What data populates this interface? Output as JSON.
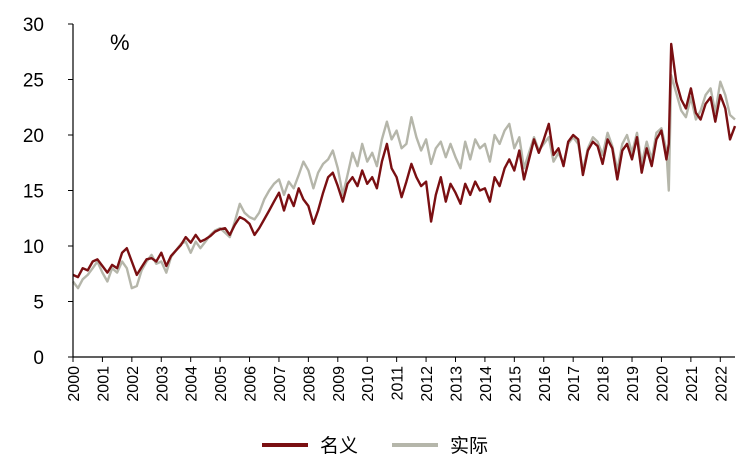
{
  "chart_data": {
    "type": "line",
    "unit_label": "%",
    "ylim": [
      0,
      30
    ],
    "y_ticks": [
      "0",
      "5",
      "10",
      "15",
      "20",
      "25",
      "30"
    ],
    "x_ticks": [
      "2000",
      "2001",
      "2002",
      "2003",
      "2004",
      "2005",
      "2006",
      "2007",
      "2008",
      "2009",
      "2010",
      "2011",
      "2012",
      "2013",
      "2014",
      "2015",
      "2016",
      "2017",
      "2018",
      "2019",
      "2020",
      "2021",
      "2022"
    ],
    "xlim": [
      2000.0,
      2022.5
    ],
    "grid": false,
    "legend_position": "bottom",
    "series": [
      {
        "name": "名义",
        "color": "#7a0f12",
        "points": [
          [
            2000.0,
            7.4
          ],
          [
            2000.17,
            7.2
          ],
          [
            2000.33,
            8.0
          ],
          [
            2000.5,
            7.8
          ],
          [
            2000.67,
            8.6
          ],
          [
            2000.83,
            8.8
          ],
          [
            2001.0,
            8.2
          ],
          [
            2001.17,
            7.6
          ],
          [
            2001.33,
            8.3
          ],
          [
            2001.5,
            8.0
          ],
          [
            2001.67,
            9.4
          ],
          [
            2001.83,
            9.8
          ],
          [
            2002.0,
            8.6
          ],
          [
            2002.17,
            7.4
          ],
          [
            2002.33,
            8.1
          ],
          [
            2002.5,
            8.8
          ],
          [
            2002.67,
            8.9
          ],
          [
            2002.83,
            8.6
          ],
          [
            2003.0,
            9.4
          ],
          [
            2003.17,
            8.2
          ],
          [
            2003.33,
            9.1
          ],
          [
            2003.5,
            9.6
          ],
          [
            2003.67,
            10.1
          ],
          [
            2003.83,
            10.8
          ],
          [
            2004.0,
            10.3
          ],
          [
            2004.17,
            11.0
          ],
          [
            2004.33,
            10.4
          ],
          [
            2004.5,
            10.6
          ],
          [
            2004.67,
            10.9
          ],
          [
            2004.83,
            11.3
          ],
          [
            2005.0,
            11.5
          ],
          [
            2005.17,
            11.6
          ],
          [
            2005.33,
            11.0
          ],
          [
            2005.5,
            11.9
          ],
          [
            2005.67,
            12.6
          ],
          [
            2005.83,
            12.4
          ],
          [
            2006.0,
            12.0
          ],
          [
            2006.17,
            11.0
          ],
          [
            2006.33,
            11.6
          ],
          [
            2006.5,
            12.4
          ],
          [
            2006.67,
            13.2
          ],
          [
            2006.83,
            14.0
          ],
          [
            2007.0,
            14.8
          ],
          [
            2007.17,
            13.2
          ],
          [
            2007.33,
            14.6
          ],
          [
            2007.5,
            13.6
          ],
          [
            2007.67,
            15.2
          ],
          [
            2007.83,
            14.2
          ],
          [
            2008.0,
            13.6
          ],
          [
            2008.17,
            12.0
          ],
          [
            2008.33,
            13.2
          ],
          [
            2008.5,
            14.8
          ],
          [
            2008.67,
            16.2
          ],
          [
            2008.83,
            16.6
          ],
          [
            2009.0,
            15.4
          ],
          [
            2009.17,
            14.0
          ],
          [
            2009.33,
            15.6
          ],
          [
            2009.5,
            16.2
          ],
          [
            2009.67,
            15.4
          ],
          [
            2009.83,
            16.8
          ],
          [
            2010.0,
            15.6
          ],
          [
            2010.17,
            16.2
          ],
          [
            2010.33,
            15.2
          ],
          [
            2010.5,
            17.6
          ],
          [
            2010.67,
            19.2
          ],
          [
            2010.83,
            17.0
          ],
          [
            2011.0,
            16.2
          ],
          [
            2011.17,
            14.4
          ],
          [
            2011.33,
            15.8
          ],
          [
            2011.5,
            17.4
          ],
          [
            2011.67,
            16.2
          ],
          [
            2011.83,
            15.4
          ],
          [
            2012.0,
            15.8
          ],
          [
            2012.17,
            12.2
          ],
          [
            2012.33,
            14.6
          ],
          [
            2012.5,
            16.2
          ],
          [
            2012.67,
            14.0
          ],
          [
            2012.83,
            15.6
          ],
          [
            2013.0,
            14.8
          ],
          [
            2013.17,
            13.8
          ],
          [
            2013.33,
            15.6
          ],
          [
            2013.5,
            14.6
          ],
          [
            2013.67,
            15.8
          ],
          [
            2013.83,
            15.0
          ],
          [
            2014.0,
            15.2
          ],
          [
            2014.17,
            14.0
          ],
          [
            2014.33,
            16.2
          ],
          [
            2014.5,
            15.4
          ],
          [
            2014.67,
            17.0
          ],
          [
            2014.83,
            17.8
          ],
          [
            2015.0,
            16.8
          ],
          [
            2015.17,
            18.6
          ],
          [
            2015.33,
            16.0
          ],
          [
            2015.5,
            17.8
          ],
          [
            2015.67,
            19.6
          ],
          [
            2015.83,
            18.4
          ],
          [
            2016.0,
            19.6
          ],
          [
            2016.17,
            21.0
          ],
          [
            2016.33,
            18.2
          ],
          [
            2016.5,
            18.8
          ],
          [
            2016.67,
            17.2
          ],
          [
            2016.83,
            19.4
          ],
          [
            2017.0,
            20.0
          ],
          [
            2017.17,
            19.6
          ],
          [
            2017.33,
            16.4
          ],
          [
            2017.5,
            18.6
          ],
          [
            2017.67,
            19.4
          ],
          [
            2017.83,
            19.0
          ],
          [
            2018.0,
            17.4
          ],
          [
            2018.17,
            19.6
          ],
          [
            2018.33,
            18.8
          ],
          [
            2018.5,
            16.0
          ],
          [
            2018.67,
            18.6
          ],
          [
            2018.83,
            19.2
          ],
          [
            2019.0,
            17.8
          ],
          [
            2019.17,
            19.8
          ],
          [
            2019.33,
            16.6
          ],
          [
            2019.5,
            18.8
          ],
          [
            2019.67,
            17.2
          ],
          [
            2019.83,
            19.6
          ],
          [
            2020.0,
            20.4
          ],
          [
            2020.17,
            17.8
          ],
          [
            2020.25,
            19.2
          ],
          [
            2020.33,
            28.2
          ],
          [
            2020.5,
            24.8
          ],
          [
            2020.67,
            23.2
          ],
          [
            2020.83,
            22.4
          ],
          [
            2021.0,
            24.2
          ],
          [
            2021.17,
            22.0
          ],
          [
            2021.33,
            21.4
          ],
          [
            2021.5,
            22.8
          ],
          [
            2021.67,
            23.4
          ],
          [
            2021.83,
            21.2
          ],
          [
            2022.0,
            23.6
          ],
          [
            2022.17,
            22.4
          ],
          [
            2022.33,
            19.6
          ],
          [
            2022.5,
            20.8
          ]
        ]
      },
      {
        "name": "实际",
        "color": "#b5b6aa",
        "points": [
          [
            2000.0,
            6.8
          ],
          [
            2000.17,
            6.2
          ],
          [
            2000.33,
            7.0
          ],
          [
            2000.5,
            7.4
          ],
          [
            2000.67,
            8.0
          ],
          [
            2000.83,
            8.6
          ],
          [
            2001.0,
            7.6
          ],
          [
            2001.17,
            6.8
          ],
          [
            2001.33,
            8.0
          ],
          [
            2001.5,
            7.6
          ],
          [
            2001.67,
            8.6
          ],
          [
            2001.83,
            8.0
          ],
          [
            2002.0,
            6.2
          ],
          [
            2002.17,
            6.4
          ],
          [
            2002.33,
            7.8
          ],
          [
            2002.5,
            8.6
          ],
          [
            2002.67,
            9.2
          ],
          [
            2002.83,
            8.4
          ],
          [
            2003.0,
            8.6
          ],
          [
            2003.17,
            7.6
          ],
          [
            2003.33,
            9.0
          ],
          [
            2003.5,
            9.6
          ],
          [
            2003.67,
            10.2
          ],
          [
            2003.83,
            10.4
          ],
          [
            2004.0,
            9.4
          ],
          [
            2004.17,
            10.4
          ],
          [
            2004.33,
            9.8
          ],
          [
            2004.5,
            10.4
          ],
          [
            2004.67,
            11.0
          ],
          [
            2004.83,
            11.4
          ],
          [
            2005.0,
            11.6
          ],
          [
            2005.17,
            11.2
          ],
          [
            2005.33,
            10.8
          ],
          [
            2005.5,
            12.2
          ],
          [
            2005.67,
            13.8
          ],
          [
            2005.83,
            13.0
          ],
          [
            2006.0,
            12.6
          ],
          [
            2006.17,
            12.4
          ],
          [
            2006.33,
            13.0
          ],
          [
            2006.5,
            14.2
          ],
          [
            2006.67,
            15.0
          ],
          [
            2006.83,
            15.6
          ],
          [
            2007.0,
            16.0
          ],
          [
            2007.17,
            14.6
          ],
          [
            2007.33,
            15.8
          ],
          [
            2007.5,
            15.2
          ],
          [
            2007.67,
            16.4
          ],
          [
            2007.83,
            17.6
          ],
          [
            2008.0,
            16.8
          ],
          [
            2008.17,
            15.2
          ],
          [
            2008.33,
            16.6
          ],
          [
            2008.5,
            17.4
          ],
          [
            2008.67,
            17.8
          ],
          [
            2008.83,
            18.6
          ],
          [
            2009.0,
            17.0
          ],
          [
            2009.17,
            14.6
          ],
          [
            2009.33,
            16.4
          ],
          [
            2009.5,
            18.4
          ],
          [
            2009.67,
            17.2
          ],
          [
            2009.83,
            19.2
          ],
          [
            2010.0,
            17.6
          ],
          [
            2010.17,
            18.4
          ],
          [
            2010.33,
            17.2
          ],
          [
            2010.5,
            19.6
          ],
          [
            2010.67,
            21.2
          ],
          [
            2010.83,
            19.6
          ],
          [
            2011.0,
            20.4
          ],
          [
            2011.17,
            18.8
          ],
          [
            2011.33,
            19.2
          ],
          [
            2011.5,
            21.6
          ],
          [
            2011.67,
            19.8
          ],
          [
            2011.83,
            18.6
          ],
          [
            2012.0,
            19.6
          ],
          [
            2012.17,
            17.4
          ],
          [
            2012.33,
            18.8
          ],
          [
            2012.5,
            19.4
          ],
          [
            2012.67,
            18.0
          ],
          [
            2012.83,
            19.2
          ],
          [
            2013.0,
            18.0
          ],
          [
            2013.17,
            17.0
          ],
          [
            2013.33,
            19.4
          ],
          [
            2013.5,
            17.8
          ],
          [
            2013.67,
            19.6
          ],
          [
            2013.83,
            18.8
          ],
          [
            2014.0,
            19.2
          ],
          [
            2014.17,
            17.6
          ],
          [
            2014.33,
            20.0
          ],
          [
            2014.5,
            19.2
          ],
          [
            2014.67,
            20.4
          ],
          [
            2014.83,
            21.0
          ],
          [
            2015.0,
            18.8
          ],
          [
            2015.17,
            19.8
          ],
          [
            2015.33,
            17.0
          ],
          [
            2015.5,
            18.4
          ],
          [
            2015.67,
            19.8
          ],
          [
            2015.83,
            18.6
          ],
          [
            2016.0,
            19.2
          ],
          [
            2016.17,
            19.8
          ],
          [
            2016.33,
            17.6
          ],
          [
            2016.5,
            18.4
          ],
          [
            2016.67,
            17.4
          ],
          [
            2016.83,
            19.2
          ],
          [
            2017.0,
            19.8
          ],
          [
            2017.17,
            19.2
          ],
          [
            2017.33,
            16.8
          ],
          [
            2017.5,
            18.8
          ],
          [
            2017.67,
            19.8
          ],
          [
            2017.83,
            19.4
          ],
          [
            2018.0,
            18.2
          ],
          [
            2018.17,
            20.2
          ],
          [
            2018.33,
            19.0
          ],
          [
            2018.5,
            16.8
          ],
          [
            2018.67,
            19.2
          ],
          [
            2018.83,
            20.0
          ],
          [
            2019.0,
            18.4
          ],
          [
            2019.17,
            20.2
          ],
          [
            2019.33,
            17.4
          ],
          [
            2019.5,
            19.4
          ],
          [
            2019.67,
            17.8
          ],
          [
            2019.83,
            20.2
          ],
          [
            2020.0,
            20.6
          ],
          [
            2020.17,
            18.6
          ],
          [
            2020.25,
            15.0
          ],
          [
            2020.33,
            25.4
          ],
          [
            2020.5,
            23.8
          ],
          [
            2020.67,
            22.2
          ],
          [
            2020.83,
            21.6
          ],
          [
            2021.0,
            23.4
          ],
          [
            2021.17,
            21.4
          ],
          [
            2021.33,
            22.2
          ],
          [
            2021.5,
            23.6
          ],
          [
            2021.67,
            24.2
          ],
          [
            2021.83,
            22.0
          ],
          [
            2022.0,
            24.8
          ],
          [
            2022.17,
            23.6
          ],
          [
            2022.33,
            21.8
          ],
          [
            2022.5,
            21.4
          ]
        ]
      }
    ]
  }
}
